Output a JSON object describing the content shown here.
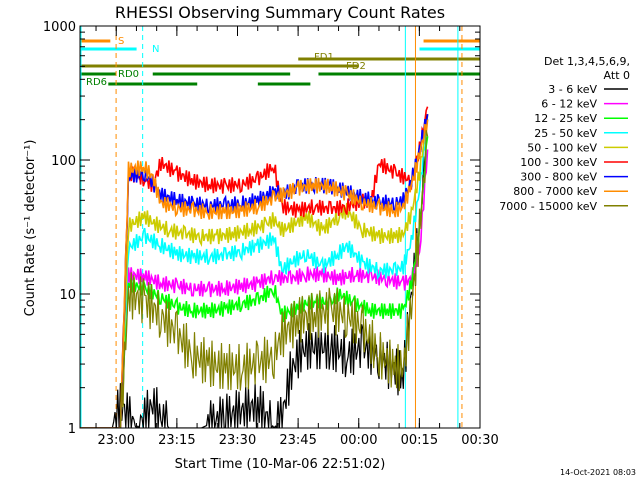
{
  "chart_data": {
    "type": "line",
    "title": "RHESSI Observing Summary Count Rates",
    "xlabel": "Start Time (10-Mar-06 22:51:02)",
    "ylabel": "Count Rate (s⁻¹ detector⁻¹)",
    "y_scale": "log",
    "ylim": [
      1,
      1000
    ],
    "xlim": [
      "22:51:02",
      "00:30:00"
    ],
    "x_ticks": [
      "23:00",
      "23:15",
      "23:30",
      "23:45",
      "00:00",
      "00:15",
      "00:30"
    ],
    "y_ticks": [
      "1",
      "10",
      "100",
      "1000"
    ],
    "legend": {
      "placement": "right",
      "header": [
        "Det 1,3,4,5,6,9,",
        "Att 0"
      ],
      "entries": [
        {
          "label": "3 - 6 keV",
          "color": "#000000"
        },
        {
          "label": "6 - 12 keV",
          "color": "#ff00ff"
        },
        {
          "label": "12 - 25 keV",
          "color": "#00ff00"
        },
        {
          "label": "25 - 50 keV",
          "color": "#00ffff"
        },
        {
          "label": "50 - 100 keV",
          "color": "#cccc00"
        },
        {
          "label": "100 - 300 keV",
          "color": "#ff0000"
        },
        {
          "label": "300 - 800 keV",
          "color": "#0000ff"
        },
        {
          "label": "800 - 7000 keV",
          "color": "#ff8c00"
        },
        {
          "label": "7000 - 15000 keV",
          "color": "#808000"
        }
      ]
    },
    "flag_bars": [
      {
        "label": "S",
        "color": "#ff8c00"
      },
      {
        "label": "N",
        "color": "#00ffff"
      },
      {
        "label": "FD1",
        "color": "#808000"
      },
      {
        "label": "FD2",
        "color": "#808000"
      },
      {
        "label": "RD0",
        "color": "#008000"
      },
      {
        "label": "RD6",
        "color": "#008000"
      }
    ],
    "series": [
      {
        "name": "3 - 6 keV",
        "color": "#000000",
        "x": [
          0,
          8,
          10,
          14,
          16,
          18,
          20,
          22,
          26,
          30,
          36,
          44,
          48,
          50,
          52,
          54,
          56,
          62,
          66,
          70,
          74,
          76,
          80,
          82,
          84,
          86
        ],
        "y": [
          1,
          1,
          1.5,
          1,
          1.2,
          1.5,
          1.2,
          1,
          1,
          1,
          1.2,
          1.5,
          1,
          1.2,
          2.5,
          3.5,
          4,
          4,
          3.5,
          4,
          3.5,
          3,
          2.5,
          10,
          30,
          200
        ]
      },
      {
        "name": "6 - 12 keV",
        "color": "#ff00ff",
        "x": [
          0,
          10,
          12,
          16,
          20,
          24,
          28,
          32,
          36,
          40,
          44,
          48,
          52,
          56,
          60,
          64,
          68,
          72,
          76,
          80,
          82,
          84,
          86
        ],
        "y": [
          1,
          1,
          14,
          13.5,
          12,
          11.5,
          11,
          10.8,
          11,
          11.5,
          12,
          13.5,
          13,
          14,
          14,
          13,
          14,
          13.5,
          13,
          12,
          13,
          20,
          120
        ]
      },
      {
        "name": "12 - 25 keV",
        "color": "#00ff00",
        "x": [
          0,
          10,
          12,
          16,
          20,
          24,
          28,
          32,
          36,
          40,
          44,
          48,
          50,
          54,
          58,
          62,
          64,
          68,
          72,
          76,
          80,
          82,
          84,
          86
        ],
        "y": [
          1,
          1,
          12,
          11,
          9.5,
          8,
          7.5,
          7.5,
          7.8,
          8.5,
          9,
          11,
          7,
          8,
          9,
          8.5,
          10,
          8.5,
          7.5,
          7.5,
          7.5,
          12,
          30,
          150
        ]
      },
      {
        "name": "25 - 50 keV",
        "color": "#00ffff",
        "x": [
          0,
          10,
          12,
          16,
          20,
          24,
          28,
          32,
          36,
          40,
          44,
          48,
          50,
          52,
          56,
          60,
          64,
          66,
          70,
          74,
          78,
          80,
          82,
          84,
          86
        ],
        "y": [
          1,
          1,
          22,
          27,
          23,
          20,
          19,
          19,
          19.5,
          21,
          23,
          26,
          15,
          17,
          20,
          16,
          20,
          23,
          17,
          15,
          15,
          16,
          25,
          60,
          200
        ]
      },
      {
        "name": "50 - 100 keV",
        "color": "#cccc00",
        "x": [
          0,
          10,
          12,
          16,
          18,
          22,
          26,
          30,
          34,
          38,
          42,
          46,
          48,
          50,
          52,
          56,
          60,
          64,
          66,
          70,
          74,
          78,
          80,
          82,
          84,
          86
        ],
        "y": [
          1,
          1,
          32,
          38,
          34,
          30,
          28,
          27,
          27,
          28,
          30,
          33,
          36,
          30,
          32,
          38,
          30,
          38,
          42,
          30,
          27,
          27,
          28,
          40,
          80,
          220
        ]
      },
      {
        "name": "100 - 300 keV",
        "color": "#ff0000",
        "x": [
          0,
          10,
          12,
          16,
          18,
          20,
          24,
          28,
          32,
          36,
          40,
          44,
          48,
          50,
          54,
          58,
          62,
          66,
          70,
          72,
          74,
          78,
          82,
          84,
          86
        ],
        "y": [
          1,
          1,
          80,
          72,
          65,
          95,
          80,
          70,
          65,
          64,
          66,
          72,
          90,
          45,
          42,
          45,
          43,
          45,
          50,
          48,
          95,
          80,
          70,
          120,
          250
        ]
      },
      {
        "name": "300 - 800 keV",
        "color": "#0000ff",
        "x": [
          0,
          10,
          12,
          16,
          18,
          20,
          24,
          28,
          32,
          36,
          40,
          44,
          48,
          50,
          54,
          58,
          62,
          66,
          70,
          74,
          78,
          80,
          82,
          84,
          86
        ],
        "y": [
          1,
          1,
          75,
          80,
          68,
          55,
          50,
          47,
          46,
          46,
          47,
          50,
          58,
          55,
          63,
          66,
          64,
          58,
          52,
          48,
          48,
          50,
          70,
          120,
          220
        ]
      },
      {
        "name": "800 - 7000 keV",
        "color": "#ff8c00",
        "x": [
          0,
          10,
          12,
          16,
          18,
          20,
          24,
          28,
          32,
          36,
          40,
          44,
          48,
          50,
          54,
          58,
          62,
          66,
          70,
          74,
          78,
          80,
          82,
          84,
          86
        ],
        "y": [
          1,
          1,
          85,
          88,
          75,
          48,
          44,
          42,
          41,
          41,
          42,
          45,
          52,
          55,
          62,
          65,
          63,
          56,
          48,
          44,
          42,
          45,
          65,
          110,
          200
        ]
      },
      {
        "name": "7000 - 15000 keV",
        "color": "#808000",
        "x": [
          0,
          10,
          12,
          16,
          20,
          24,
          28,
          32,
          36,
          40,
          44,
          48,
          50,
          54,
          58,
          62,
          66,
          70,
          74,
          78,
          80,
          82,
          84,
          86
        ],
        "y": [
          1,
          1,
          10,
          9,
          7,
          5,
          3.5,
          3,
          2.8,
          2.8,
          3,
          3.5,
          5,
          6.5,
          7,
          7.5,
          7,
          5.5,
          3.5,
          2.8,
          2.8,
          8,
          30,
          150
        ]
      }
    ],
    "x_units_note": "minutes",
    "vlines": [
      {
        "x_min": 8.93,
        "color": "#ff8c00",
        "style": "dashed"
      },
      {
        "x_min": 15.5,
        "color": "#00ffff",
        "style": "dashed"
      },
      {
        "x_min": 80.5,
        "color": "#00ffff",
        "style": "solid"
      },
      {
        "x_min": 83,
        "color": "#ff8c00",
        "style": "solid"
      },
      {
        "x_min": 93.5,
        "color": "#00ffff",
        "style": "solid"
      },
      {
        "x_min": 94.5,
        "color": "#ff8c00",
        "style": "dashed"
      }
    ]
  },
  "footer_timestamp": "14-Oct-2021 08:03"
}
